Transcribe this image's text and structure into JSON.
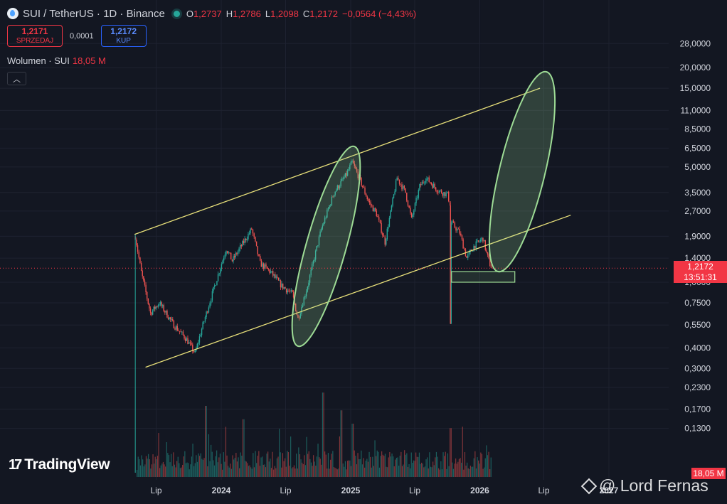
{
  "header": {
    "symbol_title": "SUI / TetherUS · 1D · Binance",
    "ohlc": [
      {
        "key": "O",
        "value": "1,2737"
      },
      {
        "key": "H",
        "value": "1,2786"
      },
      {
        "key": "L",
        "value": "1,2098"
      },
      {
        "key": "C",
        "value": "1,2172"
      }
    ],
    "change": "−0,0564 (−4,43%)"
  },
  "trade": {
    "sell_price": "1,2171",
    "sell_label": "SPRZEDAJ",
    "spread": "0,0001",
    "buy_price": "1,2172",
    "buy_label": "KUP"
  },
  "volume": {
    "label": "Wolumen · SUI",
    "value": "18,05 M",
    "axis_tag": "18,05 M"
  },
  "price_tag": {
    "price": "1,2172",
    "countdown": "13:51:31"
  },
  "branding": {
    "logo_mark": "17",
    "logo_text": "TradingView",
    "watermark": "@ Lord Fernas"
  },
  "colors": {
    "background": "#131722",
    "up": "#26a69a",
    "down": "#ef5350",
    "channel_line": "#e8e07a",
    "ellipse": "#9ddb95",
    "price_line": "#f23645"
  },
  "chart_data": {
    "type": "candlestick",
    "y_scale": "log",
    "y_ticks": [
      "28,0000",
      "20,0000",
      "15,0000",
      "11,0000",
      "8,5000",
      "6,5000",
      "5,0000",
      "3,5000",
      "2,7000",
      "1,9000",
      "1,4000",
      "1,0000",
      "0,7500",
      "0,5500",
      "0,4000",
      "0,3000",
      "0,2300",
      "0,1700",
      "0,1300"
    ],
    "x_ticks": [
      {
        "label": "Lip",
        "bold": false
      },
      {
        "label": "2024",
        "bold": true
      },
      {
        "label": "Lip",
        "bold": false
      },
      {
        "label": "2025",
        "bold": true
      },
      {
        "label": "Lip",
        "bold": false
      },
      {
        "label": "2026",
        "bold": true
      },
      {
        "label": "Lip",
        "bold": false
      },
      {
        "label": "2027",
        "bold": true
      }
    ],
    "last_price": 1.2172,
    "price_path": [
      [
        "2023-05-03",
        1.9
      ],
      [
        "2023-05-20",
        1.15
      ],
      [
        "2023-06-15",
        0.65
      ],
      [
        "2023-07-10",
        0.75
      ],
      [
        "2023-08-20",
        0.55
      ],
      [
        "2023-09-25",
        0.45
      ],
      [
        "2023-10-19",
        0.37
      ],
      [
        "2023-11-10",
        0.55
      ],
      [
        "2023-12-10",
        0.9
      ],
      [
        "2024-01-15",
        1.6
      ],
      [
        "2024-02-01",
        1.35
      ],
      [
        "2024-03-27",
        2.1
      ],
      [
        "2024-04-20",
        1.3
      ],
      [
        "2024-05-20",
        1.15
      ],
      [
        "2024-06-20",
        0.95
      ],
      [
        "2024-07-20",
        0.85
      ],
      [
        "2024-08-05",
        0.6
      ],
      [
        "2024-09-01",
        0.95
      ],
      [
        "2024-10-10",
        2.1
      ],
      [
        "2024-11-15",
        3.5
      ],
      [
        "2024-12-20",
        4.5
      ],
      [
        "2025-01-05",
        5.35
      ],
      [
        "2025-01-25",
        4.3
      ],
      [
        "2025-02-20",
        3.1
      ],
      [
        "2025-03-15",
        2.6
      ],
      [
        "2025-04-08",
        1.75
      ],
      [
        "2025-05-12",
        4.3
      ],
      [
        "2025-06-05",
        3.5
      ],
      [
        "2025-06-22",
        2.4
      ],
      [
        "2025-07-15",
        3.8
      ],
      [
        "2025-08-01",
        4.3
      ],
      [
        "2025-09-05",
        3.6
      ],
      [
        "2025-10-01",
        3.4
      ],
      [
        "2025-10-09",
        3.0
      ],
      [
        "2025-10-10",
        0.56
      ],
      [
        "2025-10-12",
        2.3
      ],
      [
        "2025-11-05",
        2.0
      ],
      [
        "2025-11-25",
        1.4
      ],
      [
        "2025-12-15",
        1.65
      ],
      [
        "2026-01-10",
        1.85
      ],
      [
        "2026-01-20",
        1.5
      ],
      [
        "2026-02-02",
        1.2172
      ]
    ],
    "volume_peaks": [
      [
        "2024-10-15",
        0.95
      ],
      [
        "2024-12-05",
        0.75
      ],
      [
        "2025-01-08",
        0.6
      ],
      [
        "2023-11-20",
        0.8
      ],
      [
        "2024-03-05",
        0.65
      ],
      [
        "2025-10-10",
        0.55
      ]
    ],
    "drawings": {
      "channel_upper": [
        [
          "2023-05-01",
          1.95
        ],
        [
          "2026-06-20",
          15.0
        ]
      ],
      "channel_lower": [
        [
          "2023-06-01",
          0.305
        ],
        [
          "2026-09-15",
          2.55
        ]
      ],
      "ellipses": 2,
      "support_box": {
        "from": "2025-10-13",
        "to": "2026-04-10",
        "low": 1.0,
        "high": 1.16
      }
    }
  }
}
